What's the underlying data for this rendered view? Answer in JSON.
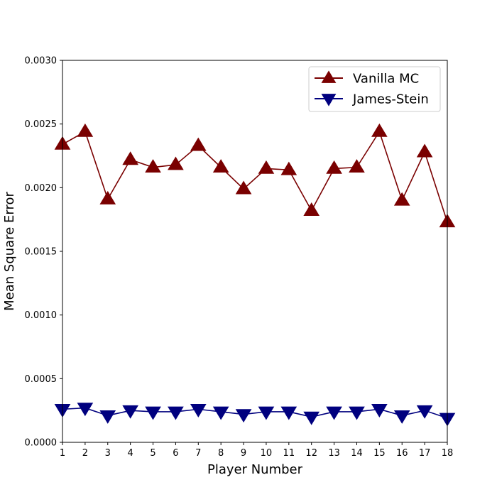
{
  "chart_data": {
    "type": "line",
    "title": "",
    "xlabel": "Player Number",
    "ylabel": "Mean Square Error",
    "x": [
      1,
      2,
      3,
      4,
      5,
      6,
      7,
      8,
      9,
      10,
      11,
      12,
      13,
      14,
      15,
      16,
      17,
      18
    ],
    "xlim": [
      1,
      18
    ],
    "ylim": [
      0,
      0.003
    ],
    "yticks": [
      "0.0000",
      "0.0005",
      "0.0010",
      "0.0015",
      "0.0020",
      "0.0025",
      "0.0030"
    ],
    "ytick_values": [
      0,
      0.0005,
      0.001,
      0.0015,
      0.002,
      0.0025,
      0.003
    ],
    "grid": false,
    "legend_position": "top-right",
    "series": [
      {
        "name": "Vanilla MC",
        "color": "#7a0000",
        "marker": "triangle-up",
        "values": [
          0.00234,
          0.00244,
          0.00191,
          0.00222,
          0.00216,
          0.00218,
          0.00233,
          0.00216,
          0.00199,
          0.00215,
          0.00214,
          0.00182,
          0.00215,
          0.00216,
          0.00244,
          0.0019,
          0.00228,
          0.00173
        ]
      },
      {
        "name": "James-Stein",
        "color": "#00007f",
        "marker": "triangle-down",
        "values": [
          0.00026,
          0.00027,
          0.00021,
          0.00025,
          0.00024,
          0.00024,
          0.00026,
          0.00024,
          0.00022,
          0.00024,
          0.00024,
          0.0002,
          0.00024,
          0.00024,
          0.00026,
          0.00021,
          0.00025,
          0.00019
        ]
      }
    ]
  }
}
